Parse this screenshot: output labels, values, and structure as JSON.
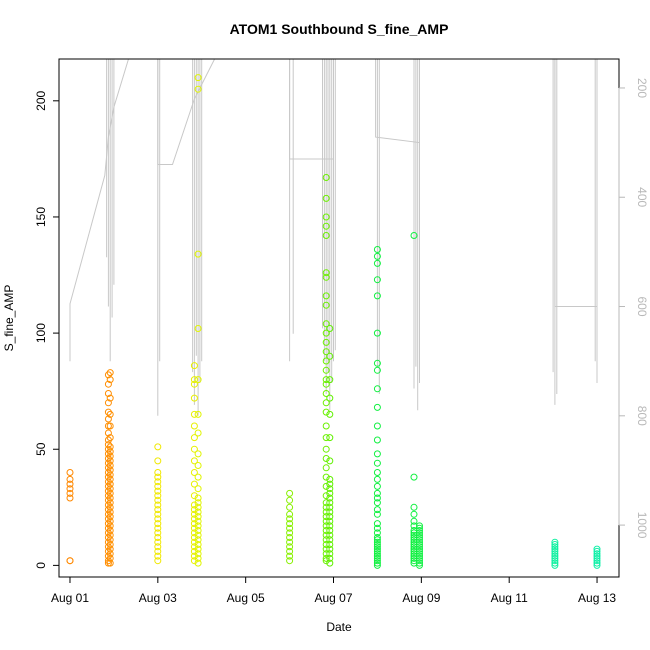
{
  "chart_data": {
    "type": "scatter",
    "title": "ATOM1 Southbound S_fine_AMP",
    "xlabel": "Date",
    "ylabel": "S_fine_AMP",
    "xlim": [
      "2024-07-31T18:00",
      "2024-08-13T12:00"
    ],
    "ylim": [
      -5,
      218
    ],
    "x_ticks": [
      {
        "date": "2024-08-01",
        "label": "Aug 01"
      },
      {
        "date": "2024-08-03",
        "label": "Aug 03"
      },
      {
        "date": "2024-08-05",
        "label": "Aug 05"
      },
      {
        "date": "2024-08-07",
        "label": "Aug 07"
      },
      {
        "date": "2024-08-09",
        "label": "Aug 09"
      },
      {
        "date": "2024-08-11",
        "label": "Aug 11"
      },
      {
        "date": "2024-08-13",
        "label": "Aug 13"
      }
    ],
    "y_ticks": [
      0,
      50,
      100,
      150,
      200
    ],
    "y2_axis": {
      "reversed": true,
      "lim": [
        1095,
        147
      ],
      "ticks": [
        200,
        400,
        600,
        800,
        1000
      ],
      "color": "#b8b8b8",
      "line_color": "#c8c8c8"
    },
    "grid": false,
    "legend": "none",
    "point_shape": "open-circle",
    "series": [
      {
        "x": "2024-08-01T00:00",
        "color": "#FF8800",
        "values": [
          2,
          2,
          29,
          31,
          33,
          35,
          37,
          40
        ]
      },
      {
        "x": "2024-08-01T21:00",
        "color": "#FF8C00",
        "values": [
          1,
          2,
          4,
          6,
          8,
          10,
          12,
          14,
          16,
          18,
          20,
          22,
          24,
          26,
          28,
          30,
          32,
          34,
          36,
          38,
          40,
          42,
          44,
          46,
          48,
          50,
          52,
          54,
          57,
          60,
          63,
          66,
          70,
          74,
          78,
          82
        ]
      },
      {
        "x": "2024-08-01T22:00",
        "color": "#FF9000",
        "values": [
          1,
          3,
          5,
          7,
          9,
          11,
          13,
          15,
          17,
          19,
          21,
          23,
          25,
          27,
          29,
          31,
          33,
          35,
          37,
          39,
          41,
          43,
          45,
          47,
          49,
          51,
          55,
          60,
          65,
          72,
          80,
          83
        ]
      },
      {
        "x": "2024-08-03T00:00",
        "color": "#F0E800",
        "values": [
          2,
          4,
          6,
          8,
          10,
          12,
          14,
          16,
          18,
          20,
          22,
          24,
          26,
          28,
          30,
          32,
          34,
          36,
          38,
          40,
          45,
          51
        ]
      },
      {
        "x": "2024-08-03T20:00",
        "color": "#E8F000",
        "values": [
          2,
          4,
          6,
          8,
          10,
          12,
          14,
          16,
          18,
          20,
          22,
          24,
          26,
          30,
          35,
          40,
          45,
          50,
          55,
          60,
          65,
          72,
          78,
          80,
          86
        ]
      },
      {
        "x": "2024-08-03T22:00",
        "color": "#E0F500",
        "values": [
          1,
          3,
          5,
          7,
          9,
          11,
          13,
          15,
          17,
          19,
          21,
          23,
          25,
          27,
          29,
          33,
          38,
          43,
          48,
          57,
          65,
          80,
          102,
          134,
          205,
          210
        ]
      },
      {
        "x": "2024-08-06T00:00",
        "color": "#88F000",
        "values": [
          2,
          4,
          6,
          8,
          10,
          12,
          14,
          16,
          18,
          20,
          22,
          25,
          28,
          31
        ]
      },
      {
        "x": "2024-08-06T20:00",
        "color": "#6CF000",
        "values": [
          2,
          3,
          5,
          7,
          9,
          11,
          13,
          15,
          17,
          19,
          21,
          23,
          25,
          27,
          30,
          34,
          38,
          42,
          46,
          50,
          55,
          60,
          66,
          70,
          74,
          78,
          80,
          84,
          88,
          92,
          96,
          100,
          104,
          112,
          116,
          124,
          126,
          142,
          146,
          150,
          158,
          167
        ]
      },
      {
        "x": "2024-08-06T22:00",
        "color": "#60F000",
        "values": [
          1,
          3,
          5,
          7,
          9,
          11,
          13,
          15,
          17,
          19,
          21,
          23,
          25,
          27,
          29,
          31,
          33,
          35,
          37,
          45,
          55,
          65,
          72,
          80,
          90,
          102
        ]
      },
      {
        "x": "2024-08-08T00:00",
        "color": "#10F040",
        "values": [
          0,
          1,
          2,
          3,
          4,
          5,
          6,
          7,
          8,
          9,
          10,
          11,
          12,
          14,
          16,
          18,
          22,
          24,
          27,
          29,
          31,
          34,
          37,
          40,
          44,
          48,
          54,
          60,
          68,
          76,
          84,
          87,
          100,
          116,
          123,
          130,
          133,
          136
        ]
      },
      {
        "x": "2024-08-08T20:00",
        "color": "#10F040",
        "values": [
          1,
          2,
          3,
          4,
          5,
          6,
          7,
          8,
          9,
          10,
          11,
          12,
          13,
          14,
          15,
          17,
          19,
          22,
          25,
          38,
          142
        ]
      },
      {
        "x": "2024-08-08T23:00",
        "color": "#14F045",
        "values": [
          0,
          1,
          2,
          3,
          4,
          5,
          6,
          7,
          8,
          9,
          10,
          11,
          12,
          13,
          14,
          15,
          16,
          17
        ]
      },
      {
        "x": "2024-08-12T01:00",
        "color": "#10F0A0",
        "values": [
          0,
          1,
          2,
          3,
          4,
          5,
          6,
          7,
          8,
          9,
          10
        ]
      },
      {
        "x": "2024-08-13T00:00",
        "color": "#10F0A8",
        "values": [
          0,
          1,
          2,
          3,
          4,
          5,
          6,
          7
        ]
      }
    ],
    "line_path": [
      [
        "2024-08-01T00:00",
        700
      ],
      [
        "2024-08-01T00:00",
        595
      ],
      [
        "2024-08-01T19:00",
        360
      ],
      [
        "2024-08-01T21:00",
        290
      ],
      [
        "2024-08-02T00:00",
        235
      ],
      [
        "2024-08-02T08:00",
        147
      ],
      [
        "2024-08-03T00:00",
        147
      ],
      [
        "2024-08-03T00:00",
        340
      ],
      [
        "2024-08-03T08:00",
        340
      ],
      [
        "2024-08-03T20:00",
        220
      ],
      [
        "2024-08-04T07:00",
        147
      ],
      [
        "2024-08-06T00:00",
        147
      ],
      [
        "2024-08-06T00:00",
        330
      ],
      [
        "2024-08-07T00:00",
        330
      ],
      [
        "2024-08-07T00:00",
        147
      ],
      [
        "2024-08-07T23:00",
        147
      ],
      [
        "2024-08-07T23:00",
        290
      ],
      [
        "2024-08-08T23:00",
        300
      ],
      [
        "2024-08-08T23:00",
        147
      ],
      [
        "2024-08-12T01:00",
        147
      ],
      [
        "2024-08-12T01:00",
        600
      ],
      [
        "2024-08-13T00:00",
        600
      ],
      [
        "2024-08-13T00:00",
        147
      ]
    ],
    "spikes": [
      {
        "x": "2024-08-01T20:00",
        "from": 147,
        "to": 510
      },
      {
        "x": "2024-08-01T21:00",
        "from": 147,
        "to": 600
      },
      {
        "x": "2024-08-01T22:00",
        "from": 147,
        "to": 700
      },
      {
        "x": "2024-08-01T23:00",
        "from": 147,
        "to": 620
      },
      {
        "x": "2024-08-02T00:00",
        "from": 147,
        "to": 560
      },
      {
        "x": "2024-08-03T00:00",
        "from": 147,
        "to": 800
      },
      {
        "x": "2024-08-03T01:00",
        "from": 147,
        "to": 700
      },
      {
        "x": "2024-08-03T19:00",
        "from": 147,
        "to": 720
      },
      {
        "x": "2024-08-03T20:00",
        "from": 147,
        "to": 780
      },
      {
        "x": "2024-08-03T21:00",
        "from": 147,
        "to": 690
      },
      {
        "x": "2024-08-03T22:00",
        "from": 147,
        "to": 800
      },
      {
        "x": "2024-08-03T23:00",
        "from": 147,
        "to": 740
      },
      {
        "x": "2024-08-04T00:00",
        "from": 147,
        "to": 700
      },
      {
        "x": "2024-08-06T00:00",
        "from": 147,
        "to": 700
      },
      {
        "x": "2024-08-06T02:00",
        "from": 147,
        "to": 650
      },
      {
        "x": "2024-08-06T18:00",
        "from": 147,
        "to": 640
      },
      {
        "x": "2024-08-06T19:00",
        "from": 147,
        "to": 700
      },
      {
        "x": "2024-08-06T20:00",
        "from": 147,
        "to": 760
      },
      {
        "x": "2024-08-06T21:00",
        "from": 147,
        "to": 720
      },
      {
        "x": "2024-08-06T22:00",
        "from": 147,
        "to": 790
      },
      {
        "x": "2024-08-06T23:00",
        "from": 147,
        "to": 740
      },
      {
        "x": "2024-08-07T00:00",
        "from": 147,
        "to": 700
      },
      {
        "x": "2024-08-07T01:00",
        "from": 147,
        "to": 680
      },
      {
        "x": "2024-08-08T00:00",
        "from": 147,
        "to": 710
      },
      {
        "x": "2024-08-08T01:00",
        "from": 147,
        "to": 760
      },
      {
        "x": "2024-08-08T20:00",
        "from": 147,
        "to": 750
      },
      {
        "x": "2024-08-08T21:00",
        "from": 147,
        "to": 710
      },
      {
        "x": "2024-08-08T22:00",
        "from": 147,
        "to": 790
      },
      {
        "x": "2024-08-08T23:00",
        "from": 147,
        "to": 740
      },
      {
        "x": "2024-08-12T00:00",
        "from": 147,
        "to": 720
      },
      {
        "x": "2024-08-12T01:00",
        "from": 147,
        "to": 780
      },
      {
        "x": "2024-08-12T02:00",
        "from": 147,
        "to": 760
      },
      {
        "x": "2024-08-12T23:00",
        "from": 147,
        "to": 700
      },
      {
        "x": "2024-08-13T00:00",
        "from": 147,
        "to": 740
      }
    ]
  }
}
